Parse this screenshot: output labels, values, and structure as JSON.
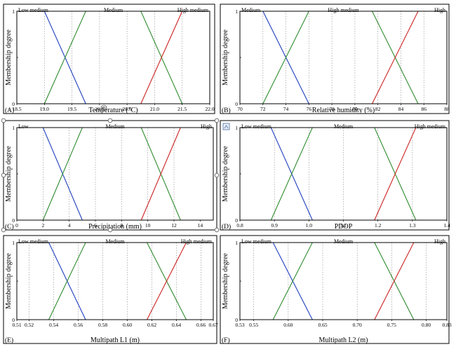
{
  "chart_data": [
    {
      "type": "line",
      "panel": "(A)",
      "xlabel": "Temperature (°C)",
      "ylabel": "Membership degree",
      "xlim": [
        18.5,
        22.0
      ],
      "ylim": [
        0,
        1
      ],
      "x_ticks": [
        18.5,
        19.0,
        19.5,
        20.0,
        20.5,
        21.0,
        21.5,
        22.0
      ],
      "x_tick_labels": [
        "18.5",
        "19.0",
        "19.5",
        "20.0",
        "20.5",
        "21.0",
        "21.5",
        "22.0"
      ],
      "y_tick_labels": [
        "0",
        "",
        "1"
      ],
      "label_align": [
        "left",
        "center",
        "right"
      ],
      "series": [
        {
          "name": "Low medium",
          "color": "#1f3fbf",
          "x": [
            18.5,
            19.0,
            19.75
          ],
          "y": [
            1,
            1,
            0
          ]
        },
        {
          "name": "Medium",
          "color": "#2e8b2e",
          "x": [
            19.0,
            19.75,
            20.75,
            21.5
          ],
          "y": [
            0,
            1,
            1,
            0
          ]
        },
        {
          "name": "High medium",
          "color": "#cc2222",
          "x": [
            20.75,
            21.5,
            22.0
          ],
          "y": [
            0,
            1,
            1
          ]
        }
      ]
    },
    {
      "type": "line",
      "panel": "(B)",
      "xlabel": "Relative humidity (%)",
      "ylabel": "Membership degree",
      "xlim": [
        70,
        88
      ],
      "ylim": [
        0,
        1
      ],
      "x_ticks": [
        70,
        72,
        74,
        76,
        78,
        80,
        82,
        84,
        86,
        88
      ],
      "x_tick_labels": [
        "70",
        "72",
        "74",
        "76",
        "78",
        "80",
        "82",
        "84",
        "86",
        "88"
      ],
      "y_tick_labels": [
        "0",
        "",
        "1"
      ],
      "label_align": [
        "left",
        "center",
        "right"
      ],
      "series": [
        {
          "name": "Medium",
          "color": "#1f3fbf",
          "x": [
            70,
            72,
            76
          ],
          "y": [
            1,
            1,
            0
          ]
        },
        {
          "name": "High medium",
          "color": "#2e8b2e",
          "x": [
            72,
            76,
            81.5,
            85.5
          ],
          "y": [
            0,
            1,
            1,
            0
          ]
        },
        {
          "name": "High",
          "color": "#cc2222",
          "x": [
            81.5,
            85.5,
            88
          ],
          "y": [
            0,
            1,
            1
          ]
        }
      ]
    },
    {
      "type": "line",
      "panel": "(C)",
      "xlabel": "Precipitation (mm)",
      "ylabel": "Membership degree",
      "xlim": [
        0,
        15
      ],
      "ylim": [
        0,
        1
      ],
      "x_ticks": [
        0,
        2,
        4,
        6,
        8,
        10,
        12,
        14
      ],
      "x_tick_labels": [
        "0",
        "2",
        "4",
        "6",
        "8",
        "10",
        "12",
        "14"
      ],
      "y_tick_labels": [
        "0",
        "",
        "1"
      ],
      "label_align": [
        "left",
        "center",
        "right"
      ],
      "series": [
        {
          "name": "Low",
          "color": "#1f3fbf",
          "x": [
            0,
            2,
            5
          ],
          "y": [
            1,
            1,
            0
          ]
        },
        {
          "name": "Medium",
          "color": "#2e8b2e",
          "x": [
            2,
            5,
            9.5,
            12.5
          ],
          "y": [
            0,
            1,
            1,
            0
          ]
        },
        {
          "name": "High",
          "color": "#cc2222",
          "x": [
            9.5,
            12.5,
            15
          ],
          "y": [
            0,
            1,
            1
          ]
        }
      ]
    },
    {
      "type": "line",
      "panel": "(D)",
      "xlabel": "PDOP",
      "ylabel": "Membership degree",
      "xlim": [
        0.8,
        1.4
      ],
      "ylim": [
        0,
        1
      ],
      "x_ticks": [
        0.8,
        0.9,
        1.0,
        1.1,
        1.2,
        1.3,
        1.4
      ],
      "x_tick_labels": [
        "0.8",
        "0.9",
        "1.0",
        "1.1",
        "1.2",
        "1.3",
        "1.4"
      ],
      "y_tick_labels": [
        "0",
        "",
        "1"
      ],
      "label_align": [
        "left",
        "center",
        "right"
      ],
      "series": [
        {
          "name": "Low medium",
          "color": "#1f3fbf",
          "x": [
            0.8,
            0.89,
            1.01
          ],
          "y": [
            1,
            1,
            0
          ]
        },
        {
          "name": "Medium",
          "color": "#2e8b2e",
          "x": [
            0.89,
            1.01,
            1.19,
            1.31
          ],
          "y": [
            0,
            1,
            1,
            0
          ]
        },
        {
          "name": "High medium",
          "color": "#cc2222",
          "x": [
            1.19,
            1.31,
            1.4
          ],
          "y": [
            0,
            1,
            1
          ]
        }
      ]
    },
    {
      "type": "line",
      "panel": "(E)",
      "xlabel": "Multipath L1 (m)",
      "ylabel": "Membership degree",
      "xlim": [
        0.51,
        0.67
      ],
      "ylim": [
        0,
        1
      ],
      "x_ticks": [
        0.51,
        0.52,
        0.54,
        0.56,
        0.58,
        0.6,
        0.62,
        0.64,
        0.66,
        0.67
      ],
      "x_tick_labels": [
        "0.51",
        "0.52",
        "0.54",
        "0.56",
        "0.58",
        "0.60",
        "0.62",
        "0.64",
        "0.66",
        "0.67"
      ],
      "y_tick_labels": [
        "0",
        "",
        "1"
      ],
      "label_align": [
        "left",
        "center",
        "right"
      ],
      "series": [
        {
          "name": "Low medium",
          "color": "#1f3fbf",
          "x": [
            0.51,
            0.536,
            0.566
          ],
          "y": [
            1,
            1,
            0
          ]
        },
        {
          "name": "Medium",
          "color": "#2e8b2e",
          "x": [
            0.536,
            0.566,
            0.616,
            0.648
          ],
          "y": [
            0,
            1,
            1,
            0
          ]
        },
        {
          "name": "High medium",
          "color": "#cc2222",
          "x": [
            0.616,
            0.648,
            0.67
          ],
          "y": [
            0,
            1,
            1
          ]
        }
      ]
    },
    {
      "type": "line",
      "panel": "(F)",
      "xlabel": "Multipath L2 (m)",
      "ylabel": "Membership degree",
      "xlim": [
        0.53,
        0.83
      ],
      "ylim": [
        0,
        1
      ],
      "x_ticks": [
        0.53,
        0.55,
        0.6,
        0.65,
        0.7,
        0.75,
        0.8,
        0.83
      ],
      "x_tick_labels": [
        "0.53",
        "0.55",
        "0.60",
        "0.65",
        "0.70",
        "0.75",
        "0.80",
        "0.83"
      ],
      "y_tick_labels": [
        "0",
        "",
        "1"
      ],
      "label_align": [
        "left",
        "center",
        "right"
      ],
      "series": [
        {
          "name": "Low medium",
          "color": "#1f3fbf",
          "x": [
            0.53,
            0.578,
            0.635
          ],
          "y": [
            1,
            1,
            0
          ]
        },
        {
          "name": "Medium",
          "color": "#2e8b2e",
          "x": [
            0.578,
            0.635,
            0.725,
            0.782
          ],
          "y": [
            0,
            1,
            1,
            0
          ]
        },
        {
          "name": "High",
          "color": "#cc2222",
          "x": [
            0.725,
            0.782,
            0.83
          ],
          "y": [
            0,
            1,
            1
          ]
        }
      ]
    }
  ]
}
